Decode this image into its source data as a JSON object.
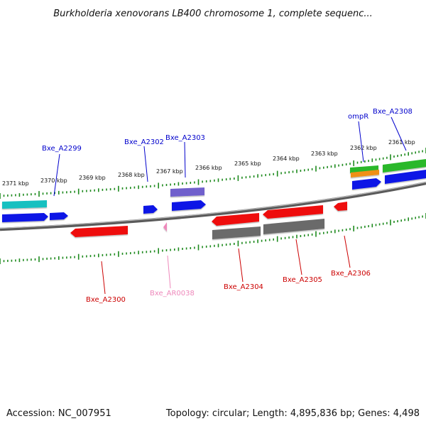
{
  "title": "Burkholderia xenovorans LB400 chromosome 1, complete sequenc...",
  "footer": {
    "accession": "Accession: NC_007951",
    "summary": "Topology: circular; Length: 4,895,836 bp; Genes: 4,498"
  },
  "scale_labels": [
    "2371 kbp",
    "2370 kbp",
    "2369 kbp",
    "2368 kbp",
    "2367 kbp",
    "2366 kbp",
    "2365 kbp",
    "2364 kbp",
    "2363 kbp",
    "2362 kbp",
    "2361 kbp"
  ],
  "gene_labels": {
    "top": [
      "Bxe_A2299",
      "Bxe_A2302",
      "Bxe_A2303",
      "ompR",
      "Bxe_A2308"
    ],
    "bottom": [
      "Bxe_A2300",
      "Bxe_AR0038",
      "Bxe_A2304",
      "Bxe_A2305",
      "Bxe_A2306"
    ]
  },
  "colors": {
    "backbone": "#6f6f6f",
    "ticks": "#1e8a1e",
    "forward_label": "#0000cc",
    "reverse_label": "#cc0000",
    "rna_label": "#ee88bb",
    "cds_blue": "#0a14e6",
    "cds_red": "#ee1111",
    "gray": "#6a6a6a",
    "cyan": "#18c0c0",
    "purple": "#7060cc",
    "green": "#2ab82a",
    "orange": "#f09018",
    "pink": "#ee88bb"
  }
}
